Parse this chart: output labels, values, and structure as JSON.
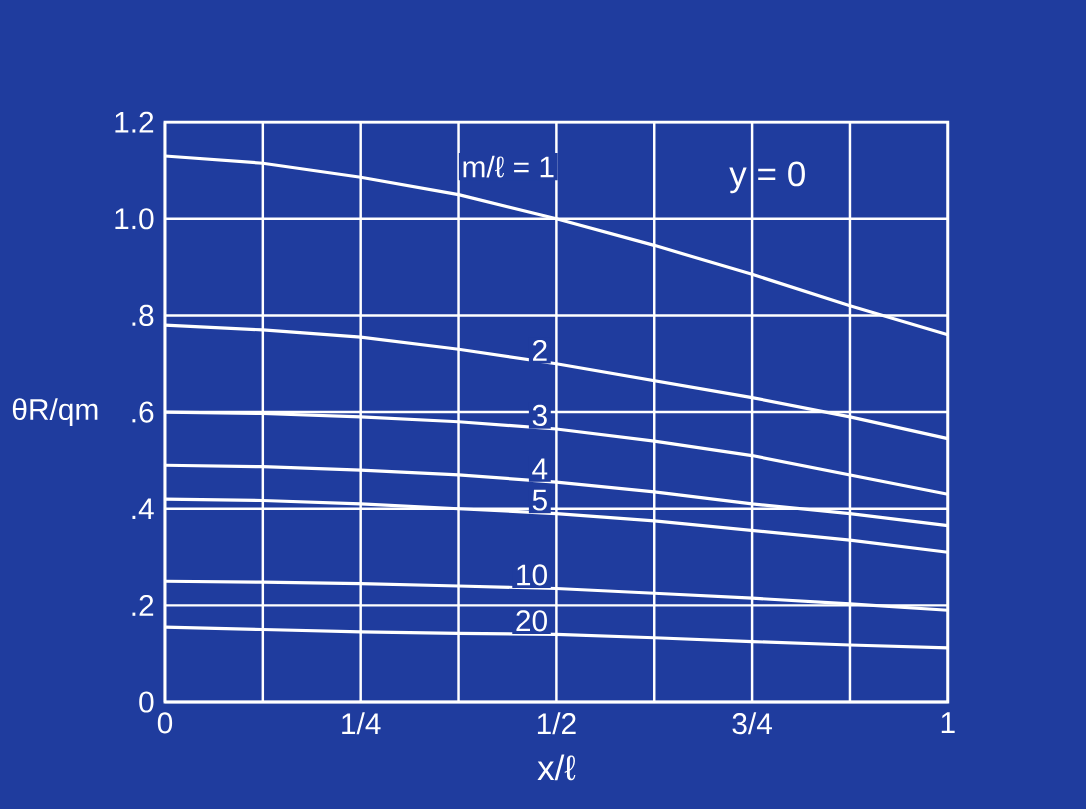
{
  "chart_data": {
    "type": "line",
    "xlabel": "x/ℓ",
    "ylabel": "θR/qm",
    "annotations": [
      "y = 0"
    ],
    "x": [
      0,
      0.125,
      0.25,
      0.375,
      0.5,
      0.625,
      0.75,
      0.875,
      1
    ],
    "series": [
      {
        "name": "m/ℓ = 1",
        "color": "#ffffff",
        "values": [
          1.13,
          1.115,
          1.086,
          1.05,
          1.0,
          0.945,
          0.885,
          0.82,
          0.76
        ]
      },
      {
        "name": "2",
        "color": "#ffffff",
        "values": [
          0.78,
          0.77,
          0.755,
          0.73,
          0.7,
          0.665,
          0.63,
          0.59,
          0.545
        ]
      },
      {
        "name": "3",
        "color": "#ffffff",
        "values": [
          0.6,
          0.597,
          0.59,
          0.58,
          0.565,
          0.54,
          0.51,
          0.47,
          0.43
        ]
      },
      {
        "name": "4",
        "color": "#ffffff",
        "values": [
          0.49,
          0.487,
          0.48,
          0.47,
          0.455,
          0.435,
          0.41,
          0.39,
          0.365
        ]
      },
      {
        "name": "5",
        "color": "#ffffff",
        "values": [
          0.42,
          0.417,
          0.41,
          0.4,
          0.39,
          0.375,
          0.355,
          0.335,
          0.31
        ]
      },
      {
        "name": "10",
        "color": "#ffffff",
        "values": [
          0.25,
          0.248,
          0.245,
          0.24,
          0.235,
          0.225,
          0.215,
          0.203,
          0.19
        ]
      },
      {
        "name": "20",
        "color": "#ffffff",
        "values": [
          0.155,
          0.15,
          0.145,
          0.142,
          0.14,
          0.133,
          0.125,
          0.118,
          0.112
        ]
      }
    ],
    "xlim": [
      0,
      1
    ],
    "ylim": [
      0,
      1.2
    ],
    "xticks": [
      0,
      {
        "value": 0.125,
        "label": null
      },
      {
        "value": 0.25,
        "label": "1/4"
      },
      {
        "value": 0.375,
        "label": null
      },
      {
        "value": 0.5,
        "label": "1/2"
      },
      {
        "value": 0.625,
        "label": null
      },
      {
        "value": 0.75,
        "label": "3/4"
      },
      {
        "value": 0.875,
        "label": null
      },
      1
    ],
    "yticks": [
      0,
      {
        "value": 0.2,
        "label": ".2"
      },
      {
        "value": 0.4,
        "label": ".4"
      },
      {
        "value": 0.6,
        "label": ".6"
      },
      {
        "value": 0.8,
        "label": ".8"
      },
      {
        "value": 1.0,
        "label": "1.0"
      },
      {
        "value": 1.2,
        "label": "1.2"
      }
    ],
    "grid": true,
    "legend": false,
    "marker": "none",
    "line_style": "solid"
  }
}
